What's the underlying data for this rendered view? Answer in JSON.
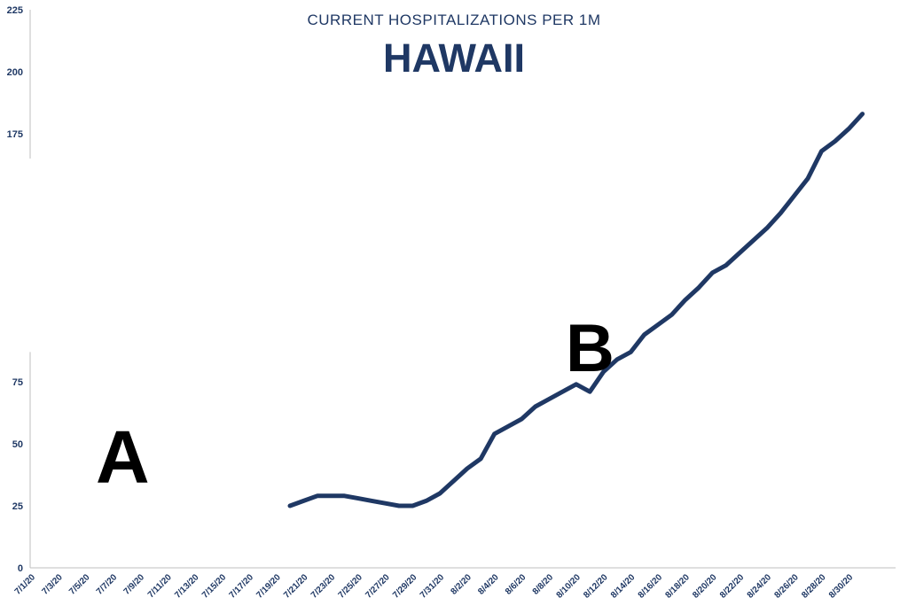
{
  "subtitle": "CURRENT HOSPITALIZATIONS PER 1M",
  "title": "HAWAII",
  "annotations": {
    "a": "A",
    "b": "B"
  },
  "colors": {
    "line": "#1f3864",
    "text": "#1f3864"
  },
  "chart_data": {
    "type": "line",
    "title": "HAWAII",
    "subtitle": "CURRENT HOSPITALIZATIONS PER 1M",
    "xlabel": "",
    "ylabel": "",
    "y_ticks": [
      0,
      25,
      50,
      75,
      175,
      200,
      225
    ],
    "y_axis_break": [
      87,
      165
    ],
    "ylim": [
      0,
      225
    ],
    "x_tick_labels": [
      "7/1/20",
      "7/3/20",
      "7/5/20",
      "7/7/20",
      "7/9/20",
      "7/11/20",
      "7/13/20",
      "7/15/20",
      "7/17/20",
      "7/19/20",
      "7/21/20",
      "7/23/20",
      "7/25/20",
      "7/27/20",
      "7/29/20",
      "7/31/20",
      "8/2/20",
      "8/4/20",
      "8/6/20",
      "8/8/20",
      "8/10/20",
      "8/12/20",
      "8/14/20",
      "8/16/20",
      "8/18/20",
      "8/20/20",
      "8/22/20",
      "8/24/20",
      "8/26/20",
      "8/28/20",
      "8/30/20"
    ],
    "grid": false,
    "legend": "none",
    "series": [
      {
        "x": [
          "7/20/20",
          "7/21/20",
          "7/22/20",
          "7/23/20",
          "7/24/20",
          "7/25/20",
          "7/26/20",
          "7/27/20",
          "7/28/20",
          "7/29/20",
          "7/30/20",
          "7/31/20",
          "8/1/20",
          "8/2/20",
          "8/3/20",
          "8/4/20",
          "8/5/20",
          "8/6/20",
          "8/7/20",
          "8/8/20",
          "8/9/20",
          "8/10/20",
          "8/11/20",
          "8/12/20",
          "8/13/20",
          "8/14/20",
          "8/15/20",
          "8/16/20",
          "8/17/20",
          "8/18/20",
          "8/19/20",
          "8/20/20",
          "8/21/20",
          "8/22/20",
          "8/23/20",
          "8/24/20",
          "8/25/20",
          "8/26/20",
          "8/27/20",
          "8/28/20",
          "8/29/20",
          "8/30/20",
          "8/31/20"
        ],
        "values": [
          25,
          27,
          29,
          29,
          29,
          28,
          27,
          26,
          25,
          25,
          27,
          30,
          35,
          40,
          44,
          54,
          57,
          60,
          65,
          68,
          71,
          74,
          71,
          79,
          84,
          87,
          94,
          98,
          102,
          108,
          113,
          119,
          122,
          127,
          132,
          137,
          143,
          150,
          157,
          168,
          172,
          177,
          183
        ]
      }
    ]
  }
}
